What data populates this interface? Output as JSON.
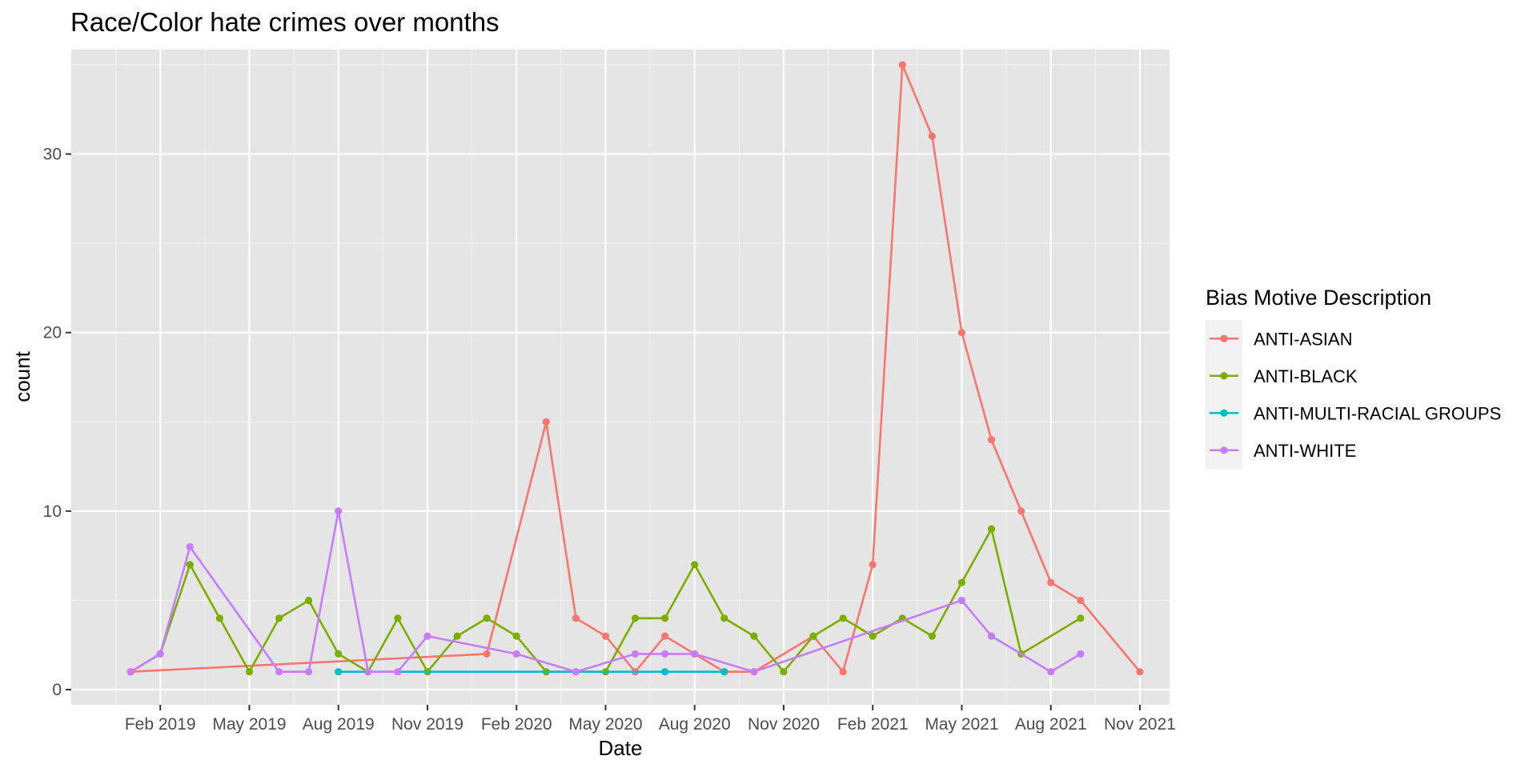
{
  "chart_data": {
    "type": "line",
    "title": "Race/Color hate crimes over months",
    "xlabel": "Date",
    "ylabel": "count",
    "x_type": "date",
    "x_ticks": [
      "2019-02",
      "2019-05",
      "2019-08",
      "2019-11",
      "2020-02",
      "2020-05",
      "2020-08",
      "2020-11",
      "2021-02",
      "2021-05",
      "2021-08",
      "2021-11"
    ],
    "x_tick_labels": [
      "Feb 2019",
      "May 2019",
      "Aug 2019",
      "Nov 2019",
      "Feb 2020",
      "May 2020",
      "Aug 2020",
      "Nov 2020",
      "Feb 2021",
      "May 2021",
      "Aug 2021",
      "Nov 2021"
    ],
    "x_range": [
      "2018-11",
      "2021-12"
    ],
    "y_ticks": [
      0,
      10,
      20,
      30
    ],
    "ylim": [
      -0.85,
      35.85
    ],
    "grid": true,
    "background": "#e5e5e5",
    "legend": {
      "title": "Bias Motive Description",
      "position": "right"
    },
    "series": [
      {
        "name": "ANTI-ASIAN",
        "color": "#f8766d",
        "x": [
          "2019-01",
          "2020-01",
          "2020-03",
          "2020-04",
          "2020-05",
          "2020-06",
          "2020-07",
          "2020-08",
          "2020-09",
          "2020-10",
          "2020-12",
          "2021-01",
          "2021-02",
          "2021-03",
          "2021-04",
          "2021-05",
          "2021-06",
          "2021-07",
          "2021-08",
          "2021-09",
          "2021-11"
        ],
        "values": [
          1,
          2,
          15,
          4,
          3,
          1,
          3,
          2,
          1,
          1,
          3,
          1,
          7,
          35,
          31,
          20,
          14,
          10,
          6,
          5,
          1
        ]
      },
      {
        "name": "ANTI-BLACK",
        "color": "#7cae00",
        "x": [
          "2019-01",
          "2019-02",
          "2019-03",
          "2019-04",
          "2019-05",
          "2019-06",
          "2019-07",
          "2019-08",
          "2019-09",
          "2019-10",
          "2019-11",
          "2019-12",
          "2020-01",
          "2020-02",
          "2020-03",
          "2020-05",
          "2020-06",
          "2020-07",
          "2020-08",
          "2020-09",
          "2020-10",
          "2020-11",
          "2020-12",
          "2021-01",
          "2021-02",
          "2021-03",
          "2021-04",
          "2021-05",
          "2021-06",
          "2021-07",
          "2021-09"
        ],
        "values": [
          1,
          2,
          7,
          4,
          1,
          4,
          5,
          2,
          1,
          4,
          1,
          3,
          4,
          3,
          1,
          1,
          4,
          4,
          7,
          4,
          3,
          1,
          3,
          4,
          3,
          4,
          3,
          6,
          9,
          2,
          4
        ]
      },
      {
        "name": "ANTI-MULTI-RACIAL GROUPS",
        "color": "#00bfc4",
        "x": [
          "2019-08",
          "2020-07",
          "2020-09"
        ],
        "values": [
          1,
          1,
          1
        ]
      },
      {
        "name": "ANTI-WHITE",
        "color": "#c77cff",
        "x": [
          "2019-01",
          "2019-02",
          "2019-03",
          "2019-06",
          "2019-07",
          "2019-08",
          "2019-09",
          "2019-10",
          "2019-11",
          "2020-02",
          "2020-04",
          "2020-06",
          "2020-07",
          "2020-08",
          "2020-10",
          "2021-05",
          "2021-06",
          "2021-08",
          "2021-09"
        ],
        "values": [
          1,
          2,
          8,
          1,
          1,
          10,
          1,
          1,
          3,
          2,
          1,
          2,
          2,
          2,
          1,
          5,
          3,
          1,
          2
        ]
      }
    ]
  }
}
